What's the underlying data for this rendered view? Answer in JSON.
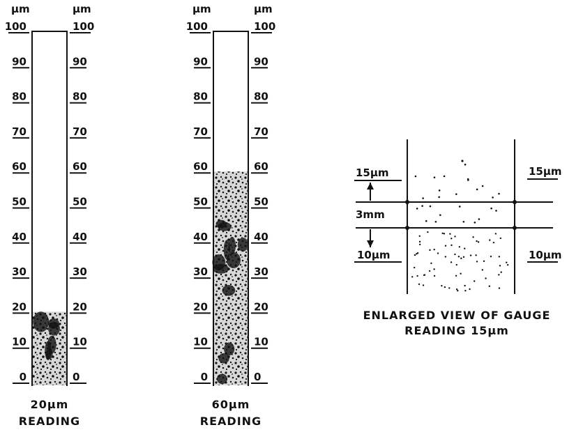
{
  "unit": "μm",
  "scale": [
    0,
    10,
    20,
    30,
    40,
    50,
    60,
    70,
    80,
    90,
    100
  ],
  "gauges": [
    {
      "level": 20,
      "caption": [
        "20μm",
        "READING"
      ]
    },
    {
      "level": 60,
      "caption": [
        "60μm",
        "READING"
      ]
    }
  ],
  "enlarged": {
    "top_left": "15μm",
    "top_right": "15μm",
    "middle": "3mm",
    "bottom_left": "10μm",
    "bottom_right": "10μm",
    "caption": [
      "ENLARGED VIEW OF GAUGE",
      "READING 15μm"
    ]
  }
}
